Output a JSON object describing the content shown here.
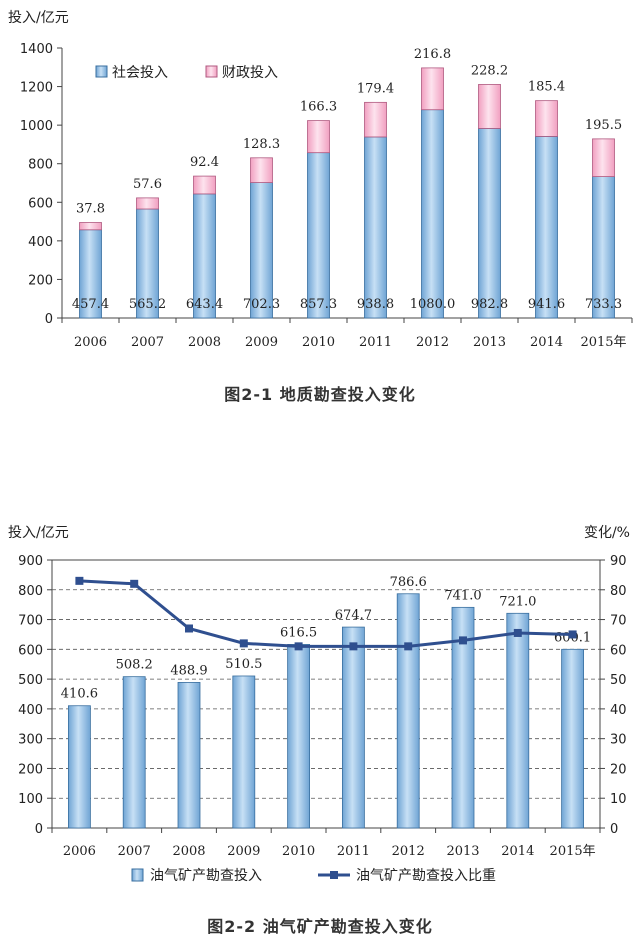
{
  "figures": [
    {
      "caption": "图2-1   地质勘查投入变化",
      "chart_data": {
        "type": "bar",
        "stacked": true,
        "categories": [
          "2006",
          "2007",
          "2008",
          "2009",
          "2010",
          "2011",
          "2012",
          "2013",
          "2014",
          "2015年"
        ],
        "series": [
          {
            "name": "社会投入",
            "values": [
              457.4,
              565.2,
              643.4,
              702.3,
              857.3,
              938.8,
              1080.0,
              982.8,
              941.6,
              733.3
            ],
            "labels": [
              "457.4",
              "565.2",
              "643.4",
              "702.3",
              "857.3",
              "938.8",
              "1080.0",
              "982.8",
              "941.6",
              "733.3"
            ],
            "color": "#8fbde3"
          },
          {
            "name": "财政投入",
            "values": [
              37.8,
              57.6,
              92.4,
              128.3,
              166.3,
              179.4,
              216.8,
              228.2,
              185.4,
              195.5
            ],
            "labels": [
              "37.8",
              "57.6",
              "92.4",
              "128.3",
              "166.3",
              "179.4",
              "216.8",
              "228.2",
              "185.4",
              "195.5"
            ],
            "color": "#f7b6cf"
          }
        ],
        "ylabel": "投入/亿元",
        "ylim": [
          0,
          1400
        ],
        "yticks": [
          "0",
          "200",
          "400",
          "600",
          "800",
          "1000",
          "1200",
          "1400"
        ],
        "grid": false,
        "legend": "top-left"
      }
    },
    {
      "caption": "图2-2   油气矿产勘查投入变化",
      "chart_data": {
        "type": "bar",
        "categories": [
          "2006",
          "2007",
          "2008",
          "2009",
          "2010",
          "2011",
          "2012",
          "2013",
          "2014",
          "2015年"
        ],
        "series": [
          {
            "name": "油气矿产勘查投入",
            "type": "bar",
            "axis": "left",
            "values": [
              410.6,
              508.2,
              488.9,
              510.5,
              616.5,
              674.7,
              786.6,
              741.0,
              721.0,
              600.1
            ],
            "labels": [
              "410.6",
              "508.2",
              "488.9",
              "510.5",
              "616.5",
              "674.7",
              "786.6",
              "741.0",
              "721.0",
              "600.1"
            ],
            "color": "#8fbde3"
          },
          {
            "name": "油气矿产勘查投入比重",
            "type": "line",
            "axis": "right",
            "values": [
              83,
              82,
              67,
              62,
              61,
              61,
              61,
              63,
              65.5,
              65
            ],
            "color": "#2f4f8f"
          }
        ],
        "ylabel": "投入/亿元",
        "ylabel_right": "变化/%",
        "ylim": [
          0,
          900
        ],
        "ylim_right": [
          0,
          90
        ],
        "yticks": [
          "0",
          "100",
          "200",
          "300",
          "400",
          "500",
          "600",
          "700",
          "800",
          "900"
        ],
        "yticks_right": [
          "0",
          "10",
          "20",
          "30",
          "40",
          "50",
          "60",
          "70",
          "80",
          "90"
        ],
        "grid": true,
        "legend": "bottom"
      }
    }
  ]
}
